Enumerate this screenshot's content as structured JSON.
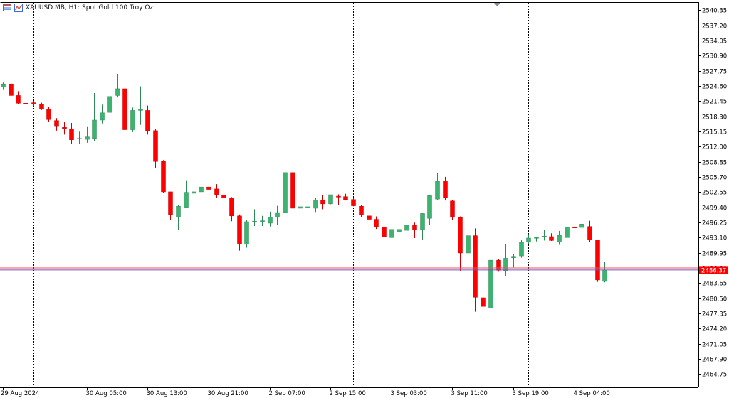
{
  "header": {
    "symbol_line": "XAUUSD.MB, H1:  Spot Gold 100 Troy Oz"
  },
  "icons": [
    "table-icon",
    "chart-icon"
  ],
  "colors": {
    "background": "#ffffff",
    "bull": "#3cb371",
    "bear": "#ff0000",
    "bid_line": "#6a5acd",
    "ask_line": "#ff4d4d",
    "price_badge": "#ff0000",
    "axis_text": "#000000"
  },
  "chart_data": {
    "type": "candlestick",
    "timeframe": "H1",
    "ylim": [
      2462.0,
      2542.0
    ],
    "y_ticks": [
      "2540.35",
      "2537.20",
      "2534.05",
      "2530.90",
      "2527.75",
      "2524.60",
      "2521.45",
      "2518.30",
      "2515.15",
      "2512.00",
      "2508.85",
      "2505.70",
      "2502.55",
      "2499.40",
      "2496.25",
      "2493.10",
      "2489.95",
      "2486.80",
      "2483.65",
      "2480.50",
      "2477.35",
      "2474.20",
      "2471.05",
      "2467.90",
      "2464.75"
    ],
    "x_labels": [
      "29 Aug 2024",
      "30 Aug 05:00",
      "30 Aug 13:00",
      "30 Aug 21:00",
      "2 Sep 07:00",
      "2 Sep 15:00",
      "3 Sep 03:00",
      "3 Sep 11:00",
      "3 Sep 19:00",
      "4 Sep 04:00"
    ],
    "x_label_bars": [
      0,
      11,
      19,
      27,
      35,
      43,
      51,
      59,
      67,
      75
    ],
    "day_separator_bars": [
      4,
      26,
      46,
      69
    ],
    "current_price": "2486.37",
    "bid": 2486.37,
    "ask": 2486.8,
    "candles": [
      {
        "o": 2524.4,
        "h": 2525.3,
        "l": 2523.9,
        "c": 2525.0
      },
      {
        "o": 2525.0,
        "h": 2525.2,
        "l": 2521.4,
        "c": 2522.6
      },
      {
        "o": 2522.6,
        "h": 2523.5,
        "l": 2520.8,
        "c": 2521.0
      },
      {
        "o": 2521.0,
        "h": 2521.9,
        "l": 2520.7,
        "c": 2520.9
      },
      {
        "o": 2521.1,
        "h": 2521.5,
        "l": 2520.4,
        "c": 2520.8
      },
      {
        "o": 2520.8,
        "h": 2521.1,
        "l": 2519.6,
        "c": 2519.8
      },
      {
        "o": 2519.8,
        "h": 2520.2,
        "l": 2517.2,
        "c": 2517.6
      },
      {
        "o": 2517.4,
        "h": 2517.9,
        "l": 2515.3,
        "c": 2516.3
      },
      {
        "o": 2516.0,
        "h": 2517.2,
        "l": 2514.5,
        "c": 2515.7
      },
      {
        "o": 2515.7,
        "h": 2516.9,
        "l": 2512.6,
        "c": 2513.4
      },
      {
        "o": 2513.6,
        "h": 2515.1,
        "l": 2512.6,
        "c": 2513.7
      },
      {
        "o": 2513.5,
        "h": 2516.2,
        "l": 2512.8,
        "c": 2514.0
      },
      {
        "o": 2513.7,
        "h": 2523.1,
        "l": 2513.2,
        "c": 2517.5
      },
      {
        "o": 2517.5,
        "h": 2520.7,
        "l": 2516.8,
        "c": 2519.0
      },
      {
        "o": 2519.1,
        "h": 2527.1,
        "l": 2518.9,
        "c": 2522.4
      },
      {
        "o": 2522.6,
        "h": 2527.1,
        "l": 2522.2,
        "c": 2524.0
      },
      {
        "o": 2524.0,
        "h": 2524.1,
        "l": 2515.3,
        "c": 2515.5
      },
      {
        "o": 2515.5,
        "h": 2520.1,
        "l": 2515.0,
        "c": 2519.5
      },
      {
        "o": 2519.5,
        "h": 2524.5,
        "l": 2516.5,
        "c": 2519.7
      },
      {
        "o": 2519.5,
        "h": 2520.5,
        "l": 2514.5,
        "c": 2515.3
      },
      {
        "o": 2515.3,
        "h": 2515.6,
        "l": 2507.6,
        "c": 2508.9
      },
      {
        "o": 2508.9,
        "h": 2509.2,
        "l": 2502.3,
        "c": 2502.6
      },
      {
        "o": 2502.6,
        "h": 2502.6,
        "l": 2496.8,
        "c": 2497.9
      },
      {
        "o": 2497.4,
        "h": 2499.9,
        "l": 2494.6,
        "c": 2499.6
      },
      {
        "o": 2499.4,
        "h": 2505.0,
        "l": 2499.3,
        "c": 2502.5
      },
      {
        "o": 2502.3,
        "h": 2504.5,
        "l": 2498.0,
        "c": 2502.6
      },
      {
        "o": 2502.6,
        "h": 2503.9,
        "l": 2502.3,
        "c": 2503.6
      },
      {
        "o": 2503.6,
        "h": 2503.8,
        "l": 2502.7,
        "c": 2503.1
      },
      {
        "o": 2503.2,
        "h": 2504.2,
        "l": 2501.4,
        "c": 2501.9
      },
      {
        "o": 2501.9,
        "h": 2504.5,
        "l": 2501.3,
        "c": 2501.3
      },
      {
        "o": 2501.3,
        "h": 2501.5,
        "l": 2496.5,
        "c": 2497.6
      },
      {
        "o": 2497.6,
        "h": 2497.9,
        "l": 2490.4,
        "c": 2491.7
      },
      {
        "o": 2491.7,
        "h": 2496.7,
        "l": 2491.0,
        "c": 2496.4
      },
      {
        "o": 2496.4,
        "h": 2499.0,
        "l": 2495.5,
        "c": 2496.5
      },
      {
        "o": 2496.4,
        "h": 2497.6,
        "l": 2495.5,
        "c": 2496.6
      },
      {
        "o": 2496.1,
        "h": 2498.5,
        "l": 2495.4,
        "c": 2497.3
      },
      {
        "o": 2497.3,
        "h": 2499.7,
        "l": 2495.8,
        "c": 2498.3
      },
      {
        "o": 2498.3,
        "h": 2508.3,
        "l": 2497.2,
        "c": 2506.6
      },
      {
        "o": 2506.6,
        "h": 2506.8,
        "l": 2498.9,
        "c": 2499.2
      },
      {
        "o": 2499.2,
        "h": 2500.2,
        "l": 2498.3,
        "c": 2499.5
      },
      {
        "o": 2499.3,
        "h": 2500.6,
        "l": 2497.7,
        "c": 2499.5
      },
      {
        "o": 2499.2,
        "h": 2501.4,
        "l": 2498.4,
        "c": 2500.9
      },
      {
        "o": 2500.9,
        "h": 2501.9,
        "l": 2499.0,
        "c": 2500.1
      },
      {
        "o": 2500.1,
        "h": 2502.0,
        "l": 2500.0,
        "c": 2502.0
      },
      {
        "o": 2501.7,
        "h": 2502.1,
        "l": 2499.9,
        "c": 2501.5
      },
      {
        "o": 2501.6,
        "h": 2502.2,
        "l": 2500.9,
        "c": 2501.0
      },
      {
        "o": 2501.0,
        "h": 2501.3,
        "l": 2499.6,
        "c": 2499.7
      },
      {
        "o": 2499.6,
        "h": 2499.9,
        "l": 2497.3,
        "c": 2497.8
      },
      {
        "o": 2497.6,
        "h": 2498.2,
        "l": 2496.8,
        "c": 2496.9
      },
      {
        "o": 2496.9,
        "h": 2497.5,
        "l": 2494.9,
        "c": 2495.3
      },
      {
        "o": 2495.3,
        "h": 2495.6,
        "l": 2489.7,
        "c": 2493.3
      },
      {
        "o": 2493.1,
        "h": 2496.6,
        "l": 2492.3,
        "c": 2494.8
      },
      {
        "o": 2494.3,
        "h": 2495.2,
        "l": 2493.9,
        "c": 2494.8
      },
      {
        "o": 2494.6,
        "h": 2496.0,
        "l": 2494.4,
        "c": 2495.7
      },
      {
        "o": 2495.7,
        "h": 2496.2,
        "l": 2493.0,
        "c": 2494.7
      },
      {
        "o": 2494.7,
        "h": 2498.3,
        "l": 2492.7,
        "c": 2498.1
      },
      {
        "o": 2497.1,
        "h": 2502.0,
        "l": 2495.8,
        "c": 2501.8
      },
      {
        "o": 2501.1,
        "h": 2506.5,
        "l": 2500.9,
        "c": 2504.8
      },
      {
        "o": 2504.9,
        "h": 2505.7,
        "l": 2500.8,
        "c": 2501.4
      },
      {
        "o": 2500.7,
        "h": 2500.9,
        "l": 2496.8,
        "c": 2497.3
      },
      {
        "o": 2497.3,
        "h": 2497.5,
        "l": 2486.2,
        "c": 2489.9
      },
      {
        "o": 2489.9,
        "h": 2501.4,
        "l": 2489.7,
        "c": 2493.5
      },
      {
        "o": 2493.5,
        "h": 2495.0,
        "l": 2477.7,
        "c": 2480.7
      },
      {
        "o": 2480.6,
        "h": 2483.3,
        "l": 2473.8,
        "c": 2478.8
      },
      {
        "o": 2478.5,
        "h": 2488.6,
        "l": 2477.5,
        "c": 2488.4
      },
      {
        "o": 2488.4,
        "h": 2488.6,
        "l": 2486.0,
        "c": 2486.3
      },
      {
        "o": 2486.2,
        "h": 2491.8,
        "l": 2485.2,
        "c": 2488.8
      },
      {
        "o": 2488.9,
        "h": 2489.6,
        "l": 2486.9,
        "c": 2489.2
      },
      {
        "o": 2489.3,
        "h": 2492.7,
        "l": 2488.9,
        "c": 2492.1
      },
      {
        "o": 2492.2,
        "h": 2493.8,
        "l": 2491.7,
        "c": 2493.0
      },
      {
        "o": 2493.1,
        "h": 2493.2,
        "l": 2492.3,
        "c": 2493.1
      },
      {
        "o": 2493.2,
        "h": 2494.7,
        "l": 2492.5,
        "c": 2493.4
      },
      {
        "o": 2493.3,
        "h": 2494.0,
        "l": 2492.4,
        "c": 2492.5
      },
      {
        "o": 2492.2,
        "h": 2494.5,
        "l": 2491.6,
        "c": 2493.6
      },
      {
        "o": 2493.1,
        "h": 2497.1,
        "l": 2492.4,
        "c": 2495.3
      },
      {
        "o": 2495.3,
        "h": 2496.4,
        "l": 2494.9,
        "c": 2495.1
      },
      {
        "o": 2495.2,
        "h": 2496.7,
        "l": 2494.1,
        "c": 2495.9
      },
      {
        "o": 2495.4,
        "h": 2496.6,
        "l": 2492.2,
        "c": 2492.6
      },
      {
        "o": 2492.6,
        "h": 2492.7,
        "l": 2483.9,
        "c": 2484.3
      },
      {
        "o": 2484.0,
        "h": 2488.1,
        "l": 2483.8,
        "c": 2486.4
      }
    ]
  }
}
